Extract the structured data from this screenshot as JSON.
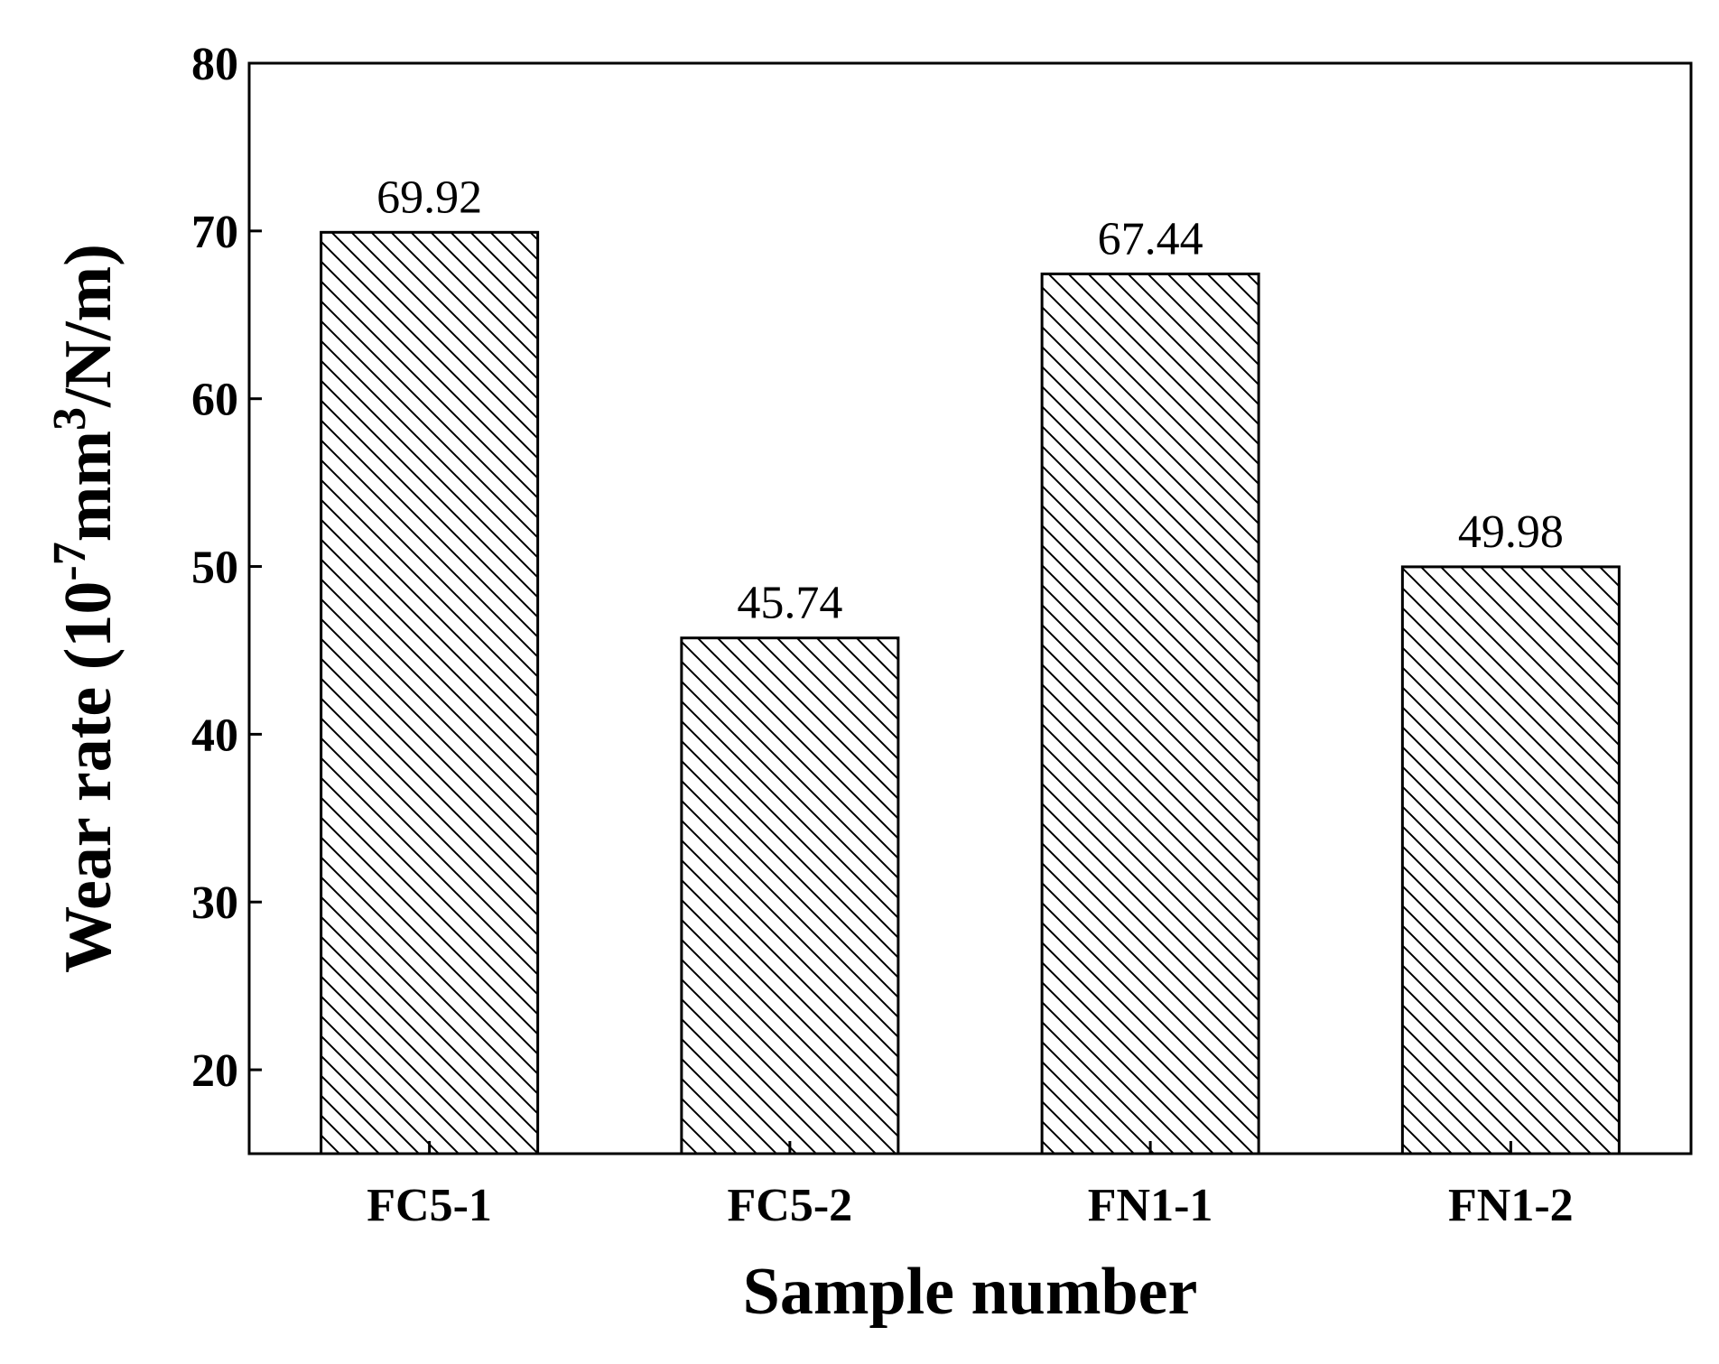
{
  "chart_data": {
    "type": "bar",
    "categories": [
      "FC5-1",
      "FC5-2",
      "FN1-1",
      "FN1-2"
    ],
    "values": [
      69.92,
      45.74,
      67.44,
      49.98
    ],
    "data_labels": [
      "69.92",
      "45.74",
      "67.44",
      "49.98"
    ],
    "xlabel": "Sample number",
    "ylabel": {
      "prefix": "Wear rate (10",
      "exp1": "-7",
      "middle": "mm",
      "exp2": "3",
      "suffix": "/N/m)"
    },
    "ylim": [
      15,
      80
    ],
    "yticks": [
      20,
      30,
      40,
      50,
      60,
      70,
      80
    ],
    "ytick_labels": [
      "20",
      "30",
      "40",
      "50",
      "60",
      "70",
      "80"
    ],
    "grid": false,
    "legend": "none",
    "bar_fill": "diagonal-hatch",
    "colors": {
      "bar_edge": "#000000",
      "hatch": "#000000",
      "background": "#ffffff"
    }
  }
}
